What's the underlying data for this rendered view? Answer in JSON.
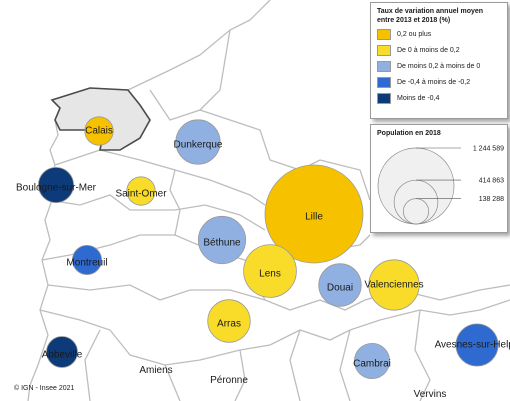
{
  "map": {
    "credit": "© IGN - Insee 2021",
    "boundary_color": "#bdbdbd",
    "land_color": "#ffffff",
    "highlight_fill": "#e6e6e6",
    "highlight_stroke": "#4a4a4a"
  },
  "legend_rate": {
    "title": "Taux de variation annuel moyen entre 2013 et 2018 (%)",
    "classes": [
      {
        "label": "0,2 ou plus",
        "color": "#f6c200"
      },
      {
        "label": "De 0 à moins de 0,2",
        "color": "#f9dc2a"
      },
      {
        "label": "De moins 0,2 à moins de 0",
        "color": "#8fb0e0"
      },
      {
        "label": "De -0,4 à moins de -0,2",
        "color": "#2f6ad0"
      },
      {
        "label": "Moins de -0,4",
        "color": "#0d3a78"
      }
    ]
  },
  "legend_pop": {
    "title": "Population en 2018",
    "values": [
      {
        "label": "1 244 589",
        "population": 1244589
      },
      {
        "label": "414 863",
        "population": 414863
      },
      {
        "label": "138 288",
        "population": 138288
      }
    ],
    "circle_fill": "#f0f0f0",
    "circle_stroke": "#8a8a8a"
  },
  "zones": [
    {
      "name": "Calais",
      "class": 0,
      "population": 104000
    },
    {
      "name": "Dunkerque",
      "class": 2,
      "population": 255000
    },
    {
      "name": "Boulogne-sur-Mer",
      "class": 4,
      "population": 160000
    },
    {
      "name": "Saint-Omer",
      "class": 1,
      "population": 105000
    },
    {
      "name": "Lille",
      "class": 0,
      "population": 1244589
    },
    {
      "name": "Béthune",
      "class": 2,
      "population": 290000
    },
    {
      "name": "Montreuil",
      "class": 3,
      "population": 110000
    },
    {
      "name": "Lens",
      "class": 1,
      "population": 360000
    },
    {
      "name": "Douai",
      "class": 2,
      "population": 235000
    },
    {
      "name": "Valenciennes",
      "class": 1,
      "population": 330000
    },
    {
      "name": "Arras",
      "class": 1,
      "population": 235000
    },
    {
      "name": "Abbeville",
      "class": 4,
      "population": 125000
    },
    {
      "name": "Avesnes-sur-Helpe",
      "class": 3,
      "population": 230000
    },
    {
      "name": "Cambrai",
      "class": 2,
      "population": 160000
    }
  ],
  "plain_labels": [
    "Amiens",
    "Péronne",
    "Vervins"
  ]
}
